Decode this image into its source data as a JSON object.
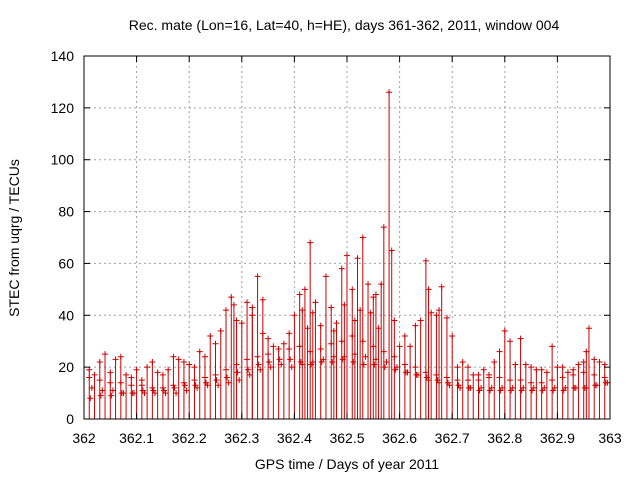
{
  "chart_data": {
    "type": "scatter",
    "title": "Rec. mate (Lon=16, Lat=40, h=HE), days 361-362, 2011, window 004",
    "xlabel": "GPS time / Days of year 2011",
    "ylabel": "STEC from uqrg / TECUs",
    "xlim": [
      362,
      363
    ],
    "ylim": [
      0,
      140
    ],
    "x_ticks": [
      "362",
      "362.1",
      "362.2",
      "362.3",
      "362.4",
      "362.5",
      "362.6",
      "362.7",
      "362.8",
      "362.9",
      "363"
    ],
    "y_ticks": [
      "0",
      "20",
      "40",
      "60",
      "80",
      "100",
      "120",
      "140"
    ],
    "grid": true,
    "colors": {
      "series": "#cc0000",
      "grid": "#a0a0a0",
      "frame": "#000000"
    },
    "series": [
      {
        "marker": "plus-with-impulse",
        "x": [
          362.01,
          362.02,
          362.03,
          362.04,
          362.05,
          362.06,
          362.07,
          362.08,
          362.09,
          362.1,
          362.11,
          362.12,
          362.13,
          362.14,
          362.15,
          362.16,
          362.17,
          362.18,
          362.19,
          362.2,
          362.21,
          362.22,
          362.23,
          362.24,
          362.25,
          362.26,
          362.27,
          362.28,
          362.29,
          362.3,
          362.31,
          362.32,
          362.33,
          362.34,
          362.35,
          362.36,
          362.37,
          362.38,
          362.39,
          362.4,
          362.41,
          362.42,
          362.43,
          362.44,
          362.45,
          362.46,
          362.47,
          362.48,
          362.49,
          362.5,
          362.51,
          362.52,
          362.53,
          362.54,
          362.55,
          362.56,
          362.57,
          362.58,
          362.59,
          362.6,
          362.61,
          362.62,
          362.63,
          362.64,
          362.65,
          362.66,
          362.67,
          362.68,
          362.69,
          362.7,
          362.71,
          362.72,
          362.73,
          362.74,
          362.75,
          362.76,
          362.77,
          362.78,
          362.79,
          362.8,
          362.81,
          362.82,
          362.83,
          362.84,
          362.85,
          362.86,
          362.87,
          362.88,
          362.89,
          362.9,
          362.91,
          362.92,
          362.93,
          362.94,
          362.95,
          362.96,
          362.97,
          362.98,
          362.99,
          362.285,
          362.32,
          362.34,
          362.415,
          362.425,
          362.435,
          362.475,
          362.495,
          362.515,
          362.525,
          362.545,
          362.555,
          362.565,
          362.585,
          362.655,
          362.675,
          362.955
        ],
        "y": [
          19,
          17,
          22,
          25,
          18,
          23,
          24,
          17,
          16,
          19,
          15,
          20,
          22,
          18,
          17,
          19,
          24,
          23,
          22,
          21,
          20,
          26,
          24,
          32,
          29,
          34,
          42,
          47,
          38,
          37,
          45,
          43,
          55,
          33,
          31,
          28,
          27,
          29,
          33,
          40,
          48,
          50,
          68,
          45,
          36,
          55,
          43,
          37,
          58,
          63,
          50,
          62,
          70,
          52,
          47,
          35,
          74,
          126,
          38,
          28,
          32,
          28,
          36,
          38,
          61,
          41,
          40,
          51,
          39,
          32,
          20,
          22,
          20,
          17,
          17,
          19,
          17,
          22,
          26,
          34,
          30,
          21,
          31,
          21,
          20,
          19,
          19,
          18,
          28,
          20,
          20,
          18,
          19,
          21,
          22,
          35,
          23,
          22,
          21,
          44,
          40,
          46,
          42,
          35,
          41,
          34,
          44,
          38,
          42,
          41,
          48,
          52,
          65,
          50,
          42,
          26
        ]
      },
      {
        "marker": "plus",
        "x": [
          362.01,
          362.03,
          362.05,
          362.07,
          362.09,
          362.11,
          362.13,
          362.15,
          362.17,
          362.19,
          362.21,
          362.23,
          362.25,
          362.27,
          362.29,
          362.31,
          362.33,
          362.35,
          362.37,
          362.39,
          362.41,
          362.43,
          362.45,
          362.47,
          362.49,
          362.51,
          362.53,
          362.55,
          362.57,
          362.59,
          362.61,
          362.63,
          362.65,
          362.67,
          362.69,
          362.71,
          362.73,
          362.75,
          362.77,
          362.79,
          362.81,
          362.83,
          362.85,
          362.87,
          362.89,
          362.91,
          362.93,
          362.95,
          362.97,
          362.99
        ],
        "y": [
          16,
          15,
          14,
          14,
          13,
          13,
          12,
          12,
          13,
          14,
          15,
          16,
          17,
          19,
          21,
          23,
          24,
          25,
          27,
          27,
          28,
          26,
          27,
          29,
          30,
          32,
          30,
          28,
          26,
          24,
          21,
          20,
          18,
          17,
          16,
          15,
          15,
          15,
          16,
          16,
          15,
          15,
          14,
          14,
          15,
          16,
          17,
          18,
          17,
          16
        ]
      },
      {
        "marker": "plus",
        "x": [
          362.015,
          362.035,
          362.055,
          362.075,
          362.095,
          362.115,
          362.135,
          362.155,
          362.175,
          362.195,
          362.215,
          362.235,
          362.255,
          362.275,
          362.295,
          362.315,
          362.335,
          362.355,
          362.375,
          362.395,
          362.415,
          362.435,
          362.455,
          362.475,
          362.495,
          362.515,
          362.535,
          362.555,
          362.575,
          362.595,
          362.615,
          362.635,
          362.655,
          362.675,
          362.695,
          362.715,
          362.735,
          362.755,
          362.775,
          362.795,
          362.815,
          362.835,
          362.855,
          362.875,
          362.895,
          362.915,
          362.935,
          362.955,
          362.975,
          362.995
        ],
        "y": [
          12,
          11,
          11,
          10,
          10,
          10,
          10,
          10,
          10,
          11,
          12,
          13,
          13,
          14,
          15,
          17,
          19,
          20,
          21,
          20,
          21,
          22,
          23,
          24,
          24,
          25,
          24,
          23,
          22,
          20,
          18,
          17,
          15,
          14,
          13,
          12,
          12,
          12,
          12,
          12,
          12,
          12,
          12,
          12,
          12,
          12,
          12,
          12,
          13,
          14
        ]
      },
      {
        "marker": "plus",
        "x": [
          362.012,
          362.032,
          362.052,
          362.072,
          362.092,
          362.112,
          362.132,
          362.152,
          362.172,
          362.192,
          362.212,
          362.232,
          362.252,
          362.272,
          362.292,
          362.312,
          362.332,
          362.352,
          362.372,
          362.392,
          362.412,
          362.432,
          362.452,
          362.472,
          362.492,
          362.512,
          362.532,
          362.552,
          362.572,
          362.592,
          362.612,
          362.632,
          362.652,
          362.672,
          362.692,
          362.712,
          362.732,
          362.752,
          362.772,
          362.792,
          362.812,
          362.832,
          362.852,
          362.872,
          362.892,
          362.912,
          362.932,
          362.952,
          362.972,
          362.992
        ],
        "y": [
          8,
          9,
          9,
          10,
          10,
          11,
          11,
          11,
          12,
          13,
          13,
          14,
          15,
          16,
          18,
          19,
          21,
          22,
          23,
          23,
          22,
          21,
          22,
          22,
          23,
          22,
          21,
          21,
          20,
          19,
          18,
          17,
          16,
          15,
          14,
          13,
          12,
          11,
          11,
          11,
          11,
          11,
          11,
          11,
          11,
          11,
          12,
          12,
          13,
          14
        ]
      }
    ]
  }
}
